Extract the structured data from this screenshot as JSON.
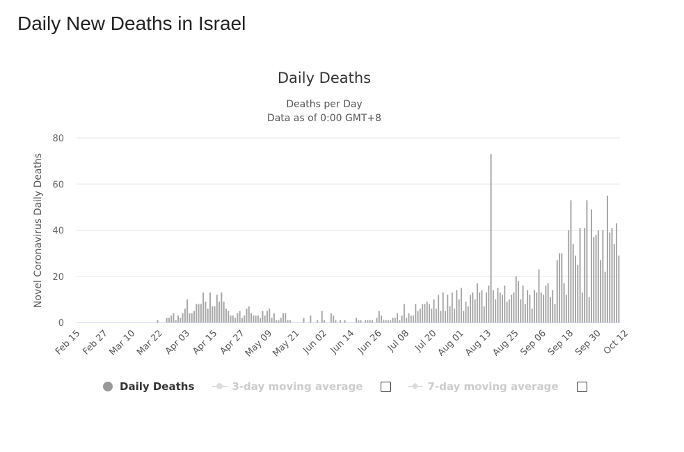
{
  "page": {
    "title": "Daily New Deaths in Israel"
  },
  "chart_data": {
    "type": "bar",
    "title": "Daily Deaths",
    "subtitle_lines": [
      "Deaths per Day",
      "Data as of 0:00 GMT+8"
    ],
    "ylabel": "Novel Coronavirus Daily Deaths",
    "xlabel": "",
    "ylim": [
      0,
      80
    ],
    "yticks": [
      0,
      20,
      40,
      60,
      80
    ],
    "grid": true,
    "start_date": "Feb 15",
    "xtick_labels": [
      "Feb 15",
      "Feb 27",
      "Mar 10",
      "Mar 22",
      "Apr 03",
      "Apr 15",
      "Apr 27",
      "May 09",
      "May 21",
      "Jun 02",
      "Jun 14",
      "Jun 26",
      "Jul 08",
      "Jul 20",
      "Aug 01",
      "Aug 13",
      "Aug 25",
      "Sep 06",
      "Sep 18",
      "Sep 30",
      "Oct 12"
    ],
    "xtick_interval_days": 12,
    "bar_color": "#a6a6a6",
    "series": [
      {
        "name": "Daily Deaths",
        "visible": true,
        "values": [
          0,
          0,
          0,
          0,
          0,
          0,
          0,
          0,
          0,
          0,
          0,
          0,
          0,
          0,
          0,
          0,
          0,
          0,
          0,
          0,
          0,
          0,
          0,
          0,
          0,
          0,
          0,
          0,
          0,
          0,
          0,
          0,
          0,
          0,
          0,
          1,
          0,
          0,
          0,
          2,
          2,
          3,
          4,
          1,
          3,
          2,
          4,
          6,
          10,
          4,
          4,
          5,
          8,
          8,
          8,
          13,
          9,
          6,
          13,
          7,
          7,
          12,
          9,
          13,
          9,
          6,
          5,
          3,
          3,
          2,
          4,
          5,
          2,
          3,
          6,
          7,
          4,
          3,
          3,
          3,
          2,
          5,
          3,
          5,
          6,
          2,
          4,
          1,
          1,
          2,
          4,
          4,
          1,
          1,
          0,
          0,
          0,
          0,
          0,
          2,
          0,
          0,
          3,
          0,
          0,
          1,
          0,
          5,
          1,
          0,
          0,
          4,
          3,
          1,
          0,
          1,
          0,
          1,
          0,
          0,
          0,
          0,
          2,
          1,
          1,
          0,
          1,
          1,
          1,
          1,
          0,
          2,
          5,
          3,
          1,
          1,
          1,
          1,
          2,
          2,
          4,
          1,
          3,
          8,
          2,
          4,
          3,
          3,
          8,
          5,
          6,
          8,
          8,
          9,
          8,
          6,
          10,
          6,
          12,
          5,
          13,
          5,
          12,
          7,
          13,
          6,
          14,
          10,
          15,
          5,
          9,
          7,
          12,
          13,
          10,
          17,
          13,
          14,
          7,
          13,
          16,
          73,
          14,
          10,
          15,
          13,
          12,
          16,
          9,
          10,
          12,
          13,
          20,
          18,
          10,
          16,
          8,
          14,
          12,
          6,
          14,
          13,
          23,
          13,
          12,
          16,
          17,
          11,
          14,
          8,
          27,
          30,
          30,
          17,
          12,
          40,
          53,
          34,
          29,
          25,
          41,
          13,
          41,
          53,
          11,
          49,
          37,
          38,
          40,
          27,
          40,
          22,
          55,
          39,
          41,
          34,
          43,
          29
        ]
      },
      {
        "name": "3-day moving average",
        "visible": false
      },
      {
        "name": "7-day moving average",
        "visible": false
      }
    ]
  },
  "legend": {
    "items": [
      {
        "label": "Daily Deaths",
        "color": "#999999"
      },
      {
        "label": "3-day moving average",
        "color": "#cccccc"
      },
      {
        "label": "7-day moving average",
        "color": "#cccccc"
      }
    ]
  }
}
